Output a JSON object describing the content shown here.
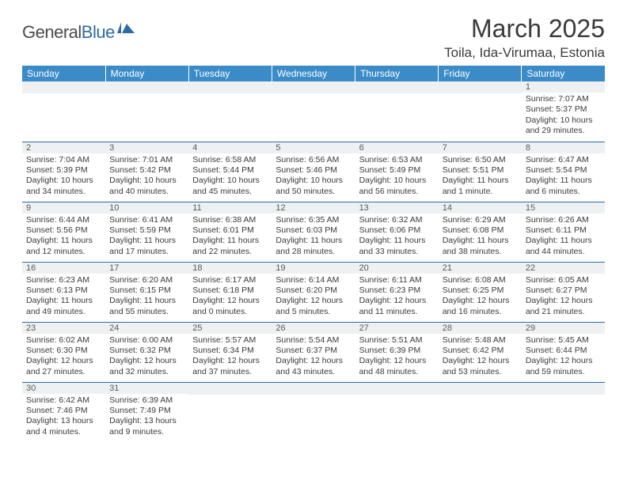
{
  "logo": {
    "dark": "General",
    "blue": "Blue"
  },
  "title": "March 2025",
  "location": "Toila, Ida-Virumaa, Estonia",
  "colors": {
    "header_bg": "#3b8bc8",
    "border": "#2e6ca4",
    "daynum_bg": "#eef0f2",
    "text": "#3a3a3a"
  },
  "weekdays": [
    "Sunday",
    "Monday",
    "Tuesday",
    "Wednesday",
    "Thursday",
    "Friday",
    "Saturday"
  ],
  "first_weekday_index": 6,
  "num_days": 31,
  "days": {
    "1": {
      "sunrise": "7:07 AM",
      "sunset": "5:37 PM",
      "daylight": "10 hours and 29 minutes."
    },
    "2": {
      "sunrise": "7:04 AM",
      "sunset": "5:39 PM",
      "daylight": "10 hours and 34 minutes."
    },
    "3": {
      "sunrise": "7:01 AM",
      "sunset": "5:42 PM",
      "daylight": "10 hours and 40 minutes."
    },
    "4": {
      "sunrise": "6:58 AM",
      "sunset": "5:44 PM",
      "daylight": "10 hours and 45 minutes."
    },
    "5": {
      "sunrise": "6:56 AM",
      "sunset": "5:46 PM",
      "daylight": "10 hours and 50 minutes."
    },
    "6": {
      "sunrise": "6:53 AM",
      "sunset": "5:49 PM",
      "daylight": "10 hours and 56 minutes."
    },
    "7": {
      "sunrise": "6:50 AM",
      "sunset": "5:51 PM",
      "daylight": "11 hours and 1 minute."
    },
    "8": {
      "sunrise": "6:47 AM",
      "sunset": "5:54 PM",
      "daylight": "11 hours and 6 minutes."
    },
    "9": {
      "sunrise": "6:44 AM",
      "sunset": "5:56 PM",
      "daylight": "11 hours and 12 minutes."
    },
    "10": {
      "sunrise": "6:41 AM",
      "sunset": "5:59 PM",
      "daylight": "11 hours and 17 minutes."
    },
    "11": {
      "sunrise": "6:38 AM",
      "sunset": "6:01 PM",
      "daylight": "11 hours and 22 minutes."
    },
    "12": {
      "sunrise": "6:35 AM",
      "sunset": "6:03 PM",
      "daylight": "11 hours and 28 minutes."
    },
    "13": {
      "sunrise": "6:32 AM",
      "sunset": "6:06 PM",
      "daylight": "11 hours and 33 minutes."
    },
    "14": {
      "sunrise": "6:29 AM",
      "sunset": "6:08 PM",
      "daylight": "11 hours and 38 minutes."
    },
    "15": {
      "sunrise": "6:26 AM",
      "sunset": "6:11 PM",
      "daylight": "11 hours and 44 minutes."
    },
    "16": {
      "sunrise": "6:23 AM",
      "sunset": "6:13 PM",
      "daylight": "11 hours and 49 minutes."
    },
    "17": {
      "sunrise": "6:20 AM",
      "sunset": "6:15 PM",
      "daylight": "11 hours and 55 minutes."
    },
    "18": {
      "sunrise": "6:17 AM",
      "sunset": "6:18 PM",
      "daylight": "12 hours and 0 minutes."
    },
    "19": {
      "sunrise": "6:14 AM",
      "sunset": "6:20 PM",
      "daylight": "12 hours and 5 minutes."
    },
    "20": {
      "sunrise": "6:11 AM",
      "sunset": "6:23 PM",
      "daylight": "12 hours and 11 minutes."
    },
    "21": {
      "sunrise": "6:08 AM",
      "sunset": "6:25 PM",
      "daylight": "12 hours and 16 minutes."
    },
    "22": {
      "sunrise": "6:05 AM",
      "sunset": "6:27 PM",
      "daylight": "12 hours and 21 minutes."
    },
    "23": {
      "sunrise": "6:02 AM",
      "sunset": "6:30 PM",
      "daylight": "12 hours and 27 minutes."
    },
    "24": {
      "sunrise": "6:00 AM",
      "sunset": "6:32 PM",
      "daylight": "12 hours and 32 minutes."
    },
    "25": {
      "sunrise": "5:57 AM",
      "sunset": "6:34 PM",
      "daylight": "12 hours and 37 minutes."
    },
    "26": {
      "sunrise": "5:54 AM",
      "sunset": "6:37 PM",
      "daylight": "12 hours and 43 minutes."
    },
    "27": {
      "sunrise": "5:51 AM",
      "sunset": "6:39 PM",
      "daylight": "12 hours and 48 minutes."
    },
    "28": {
      "sunrise": "5:48 AM",
      "sunset": "6:42 PM",
      "daylight": "12 hours and 53 minutes."
    },
    "29": {
      "sunrise": "5:45 AM",
      "sunset": "6:44 PM",
      "daylight": "12 hours and 59 minutes."
    },
    "30": {
      "sunrise": "6:42 AM",
      "sunset": "7:46 PM",
      "daylight": "13 hours and 4 minutes."
    },
    "31": {
      "sunrise": "6:39 AM",
      "sunset": "7:49 PM",
      "daylight": "13 hours and 9 minutes."
    }
  },
  "labels": {
    "sunrise": "Sunrise:",
    "sunset": "Sunset:",
    "daylight": "Daylight:"
  }
}
